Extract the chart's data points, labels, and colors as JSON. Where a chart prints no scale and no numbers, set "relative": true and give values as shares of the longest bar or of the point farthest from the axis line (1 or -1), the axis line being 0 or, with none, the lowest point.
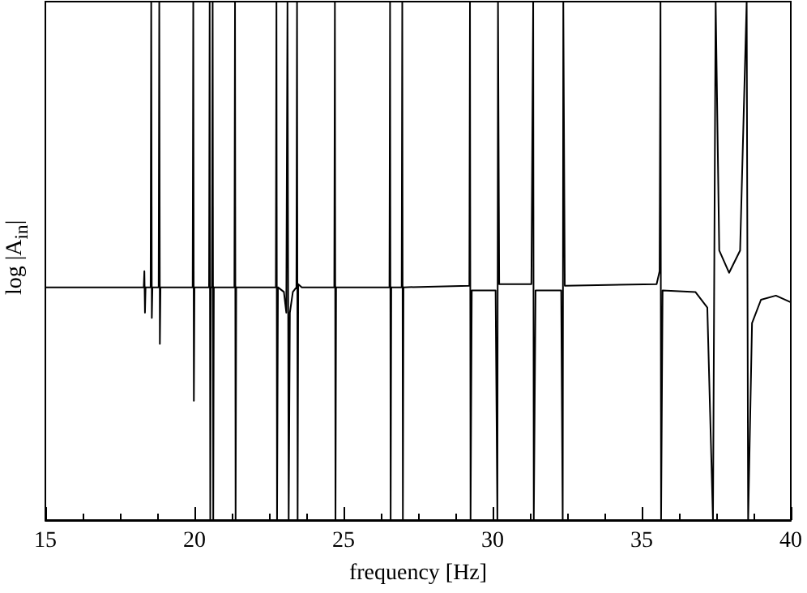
{
  "chart_data": {
    "type": "line",
    "xlabel": "frequency [Hz]",
    "ylabel": "log |A$_{in}$|",
    "relative": true,
    "xlim": [
      15,
      40
    ],
    "xticks": [
      15,
      20,
      25,
      30,
      35,
      40
    ],
    "tick_labels": "x",
    "marker": "none",
    "line_style": "solid",
    "series": [
      {
        "color": "#000000",
        "x": [
          15,
          18.3,
          18.32,
          18.34,
          18.36,
          18.53,
          18.55,
          18.57,
          18.59,
          18.8,
          18.82,
          18.84,
          18.86,
          19.94,
          19.96,
          19.98,
          20.0,
          20.49,
          20.51,
          20.53,
          20.55,
          20.59,
          20.61,
          20.63,
          20.65,
          21.34,
          21.36,
          21.38,
          21.4,
          22.73,
          22.75,
          22.77,
          22.8,
          23.0,
          23.08,
          23.12,
          23.16,
          23.2,
          23.3,
          23.42,
          23.44,
          23.46,
          23.48,
          23.6,
          24.69,
          24.71,
          24.73,
          24.75,
          26.54,
          26.56,
          26.58,
          26.6,
          26.95,
          26.97,
          26.99,
          27.01,
          29.22,
          29.24,
          29.26,
          29.3,
          30.1,
          30.16,
          30.18,
          30.22,
          31.3,
          31.36,
          31.38,
          31.44,
          32.3,
          32.35,
          32.37,
          32.42,
          35.5,
          35.6,
          35.63,
          35.65,
          35.7,
          36.8,
          37.2,
          37.39,
          37.48,
          37.6,
          37.93,
          38.3,
          38.52,
          38.57,
          38.7,
          39.0,
          39.5,
          40
        ],
        "values": [
          0.449,
          0.449,
          0.48,
          0.4,
          0.449,
          0.449,
          1,
          0.39,
          0.449,
          0.449,
          1,
          0.34,
          0.449,
          0.449,
          1,
          0.23,
          0.449,
          0.449,
          1,
          0,
          0.449,
          0.449,
          1,
          0,
          0.449,
          0.449,
          1,
          0,
          0.449,
          0.449,
          1,
          0,
          0.449,
          0.44,
          0.4,
          1,
          0,
          0.4,
          0.44,
          0.449,
          1,
          0,
          0.455,
          0.449,
          0.449,
          1,
          0,
          0.449,
          0.449,
          1,
          0,
          0.449,
          0.449,
          1,
          0,
          0.449,
          0.452,
          1,
          0,
          0.443,
          0.443,
          0,
          1,
          0.455,
          0.455,
          1,
          0,
          0.443,
          0.443,
          0,
          1,
          0.452,
          0.455,
          0.48,
          1,
          0,
          0.443,
          0.44,
          0.41,
          0,
          1,
          0.52,
          0.477,
          0.52,
          1,
          0,
          0.38,
          0.425,
          0.433,
          0.42
        ]
      }
    ]
  }
}
